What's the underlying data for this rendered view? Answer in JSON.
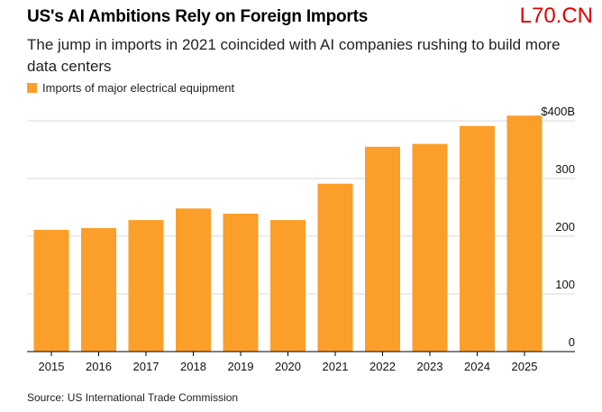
{
  "chart_data": {
    "type": "bar",
    "title": "US's AI Ambitions Rely on Foreign Imports",
    "subtitle": "The jump in imports in 2021 coincided with AI companies rushing to build more data centers",
    "legend": [
      "Imports of major electrical equipment"
    ],
    "legend_placement": "top-left",
    "categories": [
      "2015",
      "2016",
      "2017",
      "2018",
      "2019",
      "2020",
      "2021",
      "2022",
      "2023",
      "2024",
      "2025"
    ],
    "values": [
      211,
      214,
      228,
      248,
      239,
      228,
      291,
      355,
      360,
      391,
      409
    ],
    "ylim": [
      0,
      400
    ],
    "yticks": [
      0,
      100,
      200,
      300,
      400
    ],
    "ytick_labels": [
      "0",
      "100",
      "200",
      "300",
      "$400B"
    ],
    "xlabel": "",
    "ylabel": "",
    "grid": true,
    "bar_color": "#fb9e2a",
    "source": "Source: US International Trade Commission"
  },
  "watermark": "L70.CN"
}
